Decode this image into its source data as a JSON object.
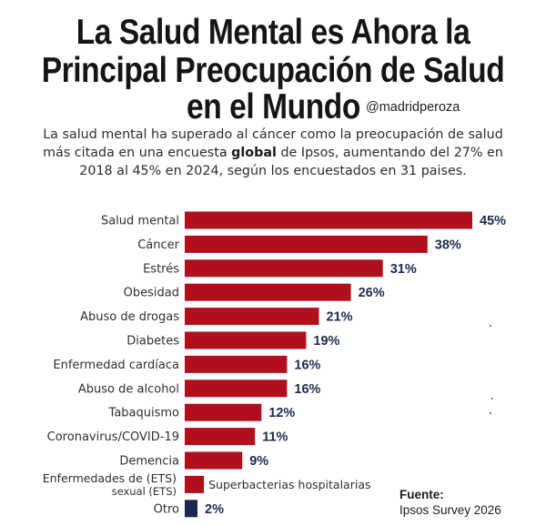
{
  "header": {
    "title_line1": "La Salud Mental es Ahora la",
    "title_line2": "Principal Preocupación de Salud",
    "title_line3": "en el Mundo",
    "handle": "@madridperoza"
  },
  "subtitle": {
    "part1": "La salud mental ha superado al cáncer como la preocupación de salud más citada en una encues",
    "part2": "ta ",
    "bold": "global",
    "part3": " de Ipsos, aumentando del 27% en 2018 al 45% en 2024, según los encuestados en 31 paises."
  },
  "chart_data": {
    "type": "bar",
    "orientation": "horizontal",
    "title": "La Salud Mental es Ahora la Principal Preocupación de Salud en el Mundo",
    "categories": [
      "Salud mental",
      "Cáncer",
      "Estrés",
      "Obesidad",
      "Abuso de drogas",
      "Diabetes",
      "Enfermedad cardíaca",
      "Abuso de alcohol",
      "Tabaquismo",
      "Coronavirus/COVID-19",
      "Demencia",
      "Enfermedades de (ETS) sexual (ETS)",
      "Otro"
    ],
    "values": [
      45,
      38,
      31,
      26,
      21,
      19,
      16,
      16,
      12,
      11,
      9,
      null,
      2
    ],
    "value_labels": [
      "45%",
      "38%",
      "31%",
      "26%",
      "21%",
      "19%",
      "16%",
      "16%",
      "12%",
      "11%",
      "9%",
      "",
      "2%"
    ],
    "colors": {
      "bar": "#b0101e",
      "other_bar": "#1c2852",
      "value_text": "#1d2b4d"
    },
    "ets": {
      "label_line1": "Enfermedades de (ETS)",
      "label_line2": "sexual (ETS)",
      "bar_approx_value": 3,
      "note": "Superbacterias hospitalarias"
    },
    "xlim": [
      0,
      45
    ],
    "grid": false,
    "legend": "none"
  },
  "source": {
    "title": "Fuente:",
    "text": "Ipsos Survey 2026"
  }
}
